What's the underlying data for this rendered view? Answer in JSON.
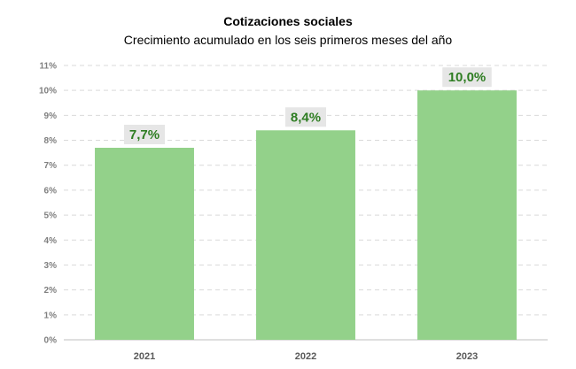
{
  "chart_data": {
    "type": "bar",
    "title": "Cotizaciones sociales",
    "subtitle": "Crecimiento acumulado en los seis primeros meses del año",
    "categories": [
      "2021",
      "2022",
      "2023"
    ],
    "values": [
      7.7,
      8.4,
      10.0
    ],
    "data_labels": [
      "7,7%",
      "8,4%",
      "10,0%"
    ],
    "y_ticks": [
      {
        "value": 0,
        "label": "0%"
      },
      {
        "value": 1,
        "label": "1%"
      },
      {
        "value": 2,
        "label": "2%"
      },
      {
        "value": 3,
        "label": "3%"
      },
      {
        "value": 4,
        "label": "4%"
      },
      {
        "value": 5,
        "label": "5%"
      },
      {
        "value": 6,
        "label": "6%"
      },
      {
        "value": 7,
        "label": "7%"
      },
      {
        "value": 8,
        "label": "8%"
      },
      {
        "value": 9,
        "label": "9%"
      },
      {
        "value": 10,
        "label": "10%"
      },
      {
        "value": 11,
        "label": "11%"
      }
    ],
    "ylim": [
      0,
      11
    ],
    "grid": true,
    "colors": {
      "bar": "#93d18a",
      "label_text": "#2e7d22",
      "label_background": "#e6e6e6",
      "grid": "#d9d9d9"
    }
  }
}
